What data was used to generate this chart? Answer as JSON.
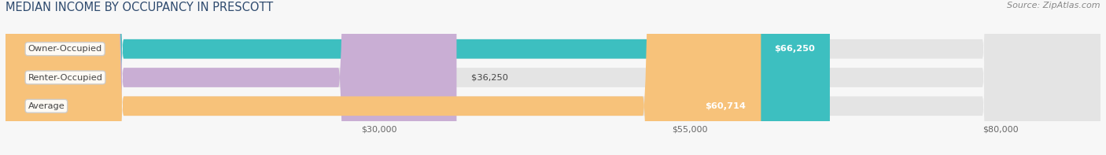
{
  "title": "MEDIAN INCOME BY OCCUPANCY IN PRESCOTT",
  "source": "Source: ZipAtlas.com",
  "categories": [
    "Owner-Occupied",
    "Renter-Occupied",
    "Average"
  ],
  "values": [
    66250,
    36250,
    60714
  ],
  "labels": [
    "$66,250",
    "$36,250",
    "$60,714"
  ],
  "bar_colors": [
    "#3dbfc0",
    "#c9aed4",
    "#f7c27a"
  ],
  "bg_bar_color": "#e4e4e4",
  "xticks": [
    30000,
    55000,
    80000
  ],
  "xtick_labels": [
    "$30,000",
    "$55,000",
    "$80,000"
  ],
  "xmin": 0,
  "xmax": 88000,
  "figsize": [
    14.06,
    1.97
  ],
  "dpi": 100
}
